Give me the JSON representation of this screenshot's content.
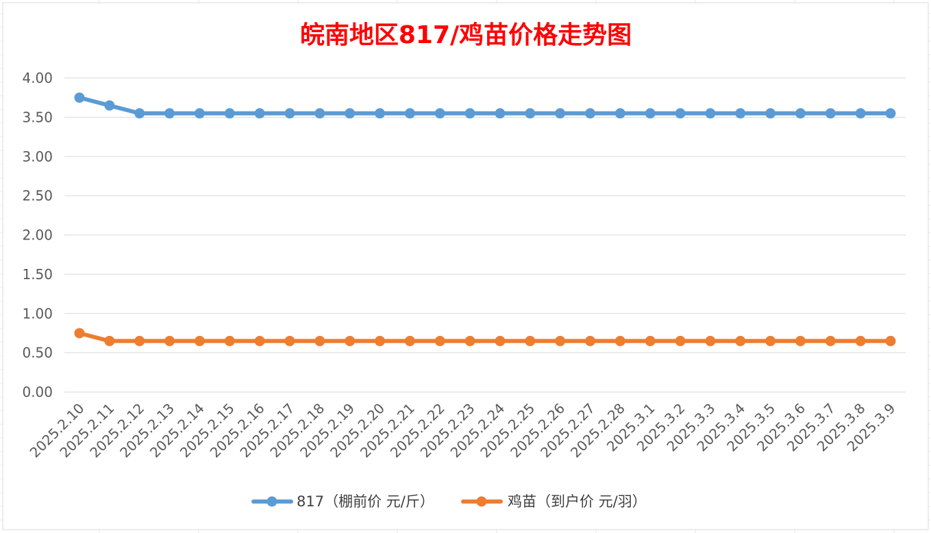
{
  "chart_data": {
    "type": "line",
    "title": "皖南地区817/鸡苗价格走势图",
    "xlabel": "",
    "ylabel": "",
    "ylim": [
      0,
      4
    ],
    "yticks": [
      "0.00",
      "0.50",
      "1.00",
      "1.50",
      "2.00",
      "2.50",
      "3.00",
      "3.50",
      "4.00"
    ],
    "grid": true,
    "legend_position": "bottom",
    "categories": [
      "2025.2.10",
      "2025.2.11",
      "2025.2.12",
      "2025.2.13",
      "2025.2.14",
      "2025.2.15",
      "2025.2.16",
      "2025.2.17",
      "2025.2.18",
      "2025.2.19",
      "2025.2.20",
      "2025.2.21",
      "2025.2.22",
      "2025.2.23",
      "2025.2.24",
      "2025.2.25",
      "2025.2.26",
      "2025.2.27",
      "2025.2.28",
      "2025.3.1",
      "2025.3.2",
      "2025.3.3",
      "2025.3.4",
      "2025.3.5",
      "2025.3.6",
      "2025.3.7",
      "2025.3.8",
      "2025.3.9"
    ],
    "series": [
      {
        "name": "817（棚前价 元/斤）",
        "color": "#5B9BD5",
        "values": [
          3.75,
          3.65,
          3.55,
          3.55,
          3.55,
          3.55,
          3.55,
          3.55,
          3.55,
          3.55,
          3.55,
          3.55,
          3.55,
          3.55,
          3.55,
          3.55,
          3.55,
          3.55,
          3.55,
          3.55,
          3.55,
          3.55,
          3.55,
          3.55,
          3.55,
          3.55,
          3.55,
          3.55
        ]
      },
      {
        "name": "鸡苗（到户价 元/羽）",
        "color": "#ED7D31",
        "values": [
          0.75,
          0.65,
          0.65,
          0.65,
          0.65,
          0.65,
          0.65,
          0.65,
          0.65,
          0.65,
          0.65,
          0.65,
          0.65,
          0.65,
          0.65,
          0.65,
          0.65,
          0.65,
          0.65,
          0.65,
          0.65,
          0.65,
          0.65,
          0.65,
          0.65,
          0.65,
          0.65,
          0.65
        ]
      }
    ],
    "title_color": "#FF0000"
  }
}
